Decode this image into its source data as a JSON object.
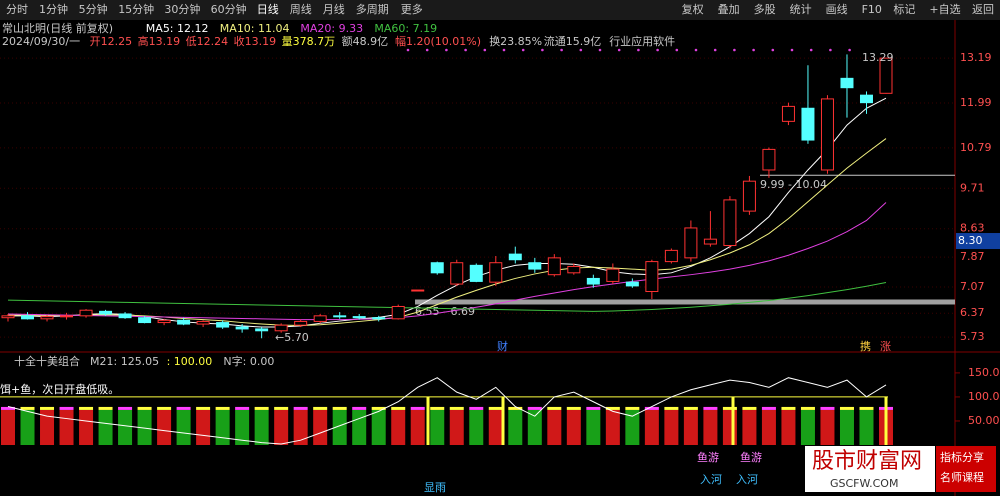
{
  "toolbar": {
    "left": [
      "分时",
      "1分钟",
      "5分钟",
      "15分钟",
      "30分钟",
      "60分钟",
      "日线",
      "周线",
      "月线",
      "多周期",
      "更多"
    ],
    "right": [
      "复权",
      "叠加",
      "多股",
      "统计",
      "画线",
      "F10",
      "标记",
      "+自选",
      "返回"
    ]
  },
  "chart_data": {
    "type": "candlestick",
    "title": "常山北明(日线 前复权)",
    "info": [
      "2024/09/30/一",
      "开12.25",
      "高13.19",
      "低12.24",
      "收13.19",
      "量378.7万",
      "额48.9亿",
      "幅1.20(10.01%)",
      "换23.85%",
      "流通15.9亿",
      "行业应用软件"
    ],
    "candles": [
      [
        6.25,
        6.35,
        6.15,
        6.3
      ],
      [
        6.3,
        6.4,
        6.2,
        6.22
      ],
      [
        6.22,
        6.32,
        6.15,
        6.28
      ],
      [
        6.28,
        6.38,
        6.2,
        6.3
      ],
      [
        6.3,
        6.48,
        6.25,
        6.45
      ],
      [
        6.42,
        6.46,
        6.3,
        6.35
      ],
      [
        6.35,
        6.4,
        6.22,
        6.25
      ],
      [
        6.25,
        6.3,
        6.1,
        6.12
      ],
      [
        6.12,
        6.22,
        6.05,
        6.18
      ],
      [
        6.18,
        6.25,
        6.05,
        6.08
      ],
      [
        6.08,
        6.18,
        6,
        6.15
      ],
      [
        6.12,
        6.18,
        5.95,
        6
      ],
      [
        6,
        6.08,
        5.85,
        5.95
      ],
      [
        5.95,
        6,
        5.7,
        5.9
      ],
      [
        5.9,
        6.1,
        5.85,
        6.05
      ],
      [
        6.05,
        6.2,
        6,
        6.15
      ],
      [
        6.15,
        6.35,
        6.1,
        6.3
      ],
      [
        6.3,
        6.4,
        6.22,
        6.28
      ],
      [
        6.28,
        6.35,
        6.2,
        6.25
      ],
      [
        6.25,
        6.3,
        6.15,
        6.22
      ],
      [
        6.22,
        6.6,
        6.2,
        6.55
      ],
      [
        6.99,
        6.99,
        6.99,
        6.99
      ],
      [
        7.72,
        7.75,
        7.4,
        7.45
      ],
      [
        7.15,
        7.8,
        7.1,
        7.72
      ],
      [
        7.65,
        7.7,
        7.2,
        7.22
      ],
      [
        7.2,
        7.9,
        7.1,
        7.72
      ],
      [
        7.95,
        8.15,
        7.7,
        7.8
      ],
      [
        7.72,
        7.85,
        7.45,
        7.55
      ],
      [
        7.4,
        7.95,
        7.35,
        7.85
      ],
      [
        7.45,
        7.7,
        7.4,
        7.62
      ],
      [
        7.3,
        7.4,
        7.05,
        7.15
      ],
      [
        7.22,
        7.7,
        7.15,
        7.55
      ],
      [
        7.2,
        7.3,
        7.05,
        7.1
      ],
      [
        6.95,
        7.8,
        6.75,
        7.75
      ],
      [
        7.75,
        8.1,
        7.7,
        8.05
      ],
      [
        7.85,
        8.85,
        7.75,
        8.65
      ],
      [
        8.22,
        9.1,
        8.15,
        8.35
      ],
      [
        8.18,
        9.5,
        8.1,
        9.4
      ],
      [
        9.1,
        10.04,
        9,
        9.9
      ],
      [
        10.2,
        10.8,
        9.99,
        10.75
      ],
      [
        11.5,
        12,
        11.4,
        11.9
      ],
      [
        11.85,
        13,
        10.9,
        11
      ],
      [
        10.2,
        12.2,
        10.1,
        12.1
      ],
      [
        12.65,
        13.29,
        11.6,
        12.4
      ],
      [
        12.2,
        12.3,
        11.7,
        12
      ],
      [
        12.25,
        13.19,
        12.24,
        13.19
      ]
    ],
    "up_color": "#ff3232",
    "down_color": "#54ffff",
    "series": [
      {
        "label": "MA5: 12.12",
        "color": "#ffffff",
        "values": [
          6.3,
          6.3,
          6.28,
          6.3,
          6.34,
          6.36,
          6.34,
          6.28,
          6.2,
          6.14,
          6.1,
          6.08,
          6.03,
          6,
          6,
          6.03,
          6.1,
          6.16,
          6.22,
          6.26,
          6.34,
          6.55,
          6.85,
          7.12,
          7.35,
          7.52,
          7.65,
          7.7,
          7.7,
          7.68,
          7.6,
          7.48,
          7.42,
          7.4,
          7.45,
          7.62,
          7.85,
          8.15,
          8.5,
          8.95,
          9.6,
          10.2,
          10.75,
          11.4,
          11.85,
          12.12
        ]
      },
      {
        "label": "MA10: 11.04",
        "color": "#f0f080",
        "values": [
          6.32,
          6.32,
          6.31,
          6.31,
          6.32,
          6.33,
          6.32,
          6.3,
          6.27,
          6.23,
          6.2,
          6.17,
          6.12,
          6.08,
          6.05,
          6.04,
          6.06,
          6.1,
          6.15,
          6.2,
          6.26,
          6.4,
          6.6,
          6.8,
          6.98,
          7.15,
          7.3,
          7.42,
          7.52,
          7.58,
          7.6,
          7.58,
          7.55,
          7.52,
          7.55,
          7.65,
          7.8,
          7.98,
          8.2,
          8.5,
          8.9,
          9.35,
          9.8,
          10.25,
          10.65,
          11.04
        ]
      },
      {
        "label": "MA20: 9.33",
        "color": "#e040e0",
        "values": [
          6.35,
          6.34,
          6.33,
          6.32,
          6.31,
          6.3,
          6.29,
          6.28,
          6.27,
          6.26,
          6.25,
          6.24,
          6.23,
          6.22,
          6.21,
          6.2,
          6.2,
          6.2,
          6.21,
          6.22,
          6.25,
          6.3,
          6.37,
          6.45,
          6.53,
          6.62,
          6.72,
          6.82,
          6.91,
          7,
          7.08,
          7.15,
          7.22,
          7.28,
          7.34,
          7.4,
          7.47,
          7.55,
          7.65,
          7.77,
          7.92,
          8.1,
          8.3,
          8.55,
          8.85,
          9.33
        ]
      },
      {
        "label": "MA60: 7.19",
        "color": "#40c040",
        "values": [
          6.72,
          6.71,
          6.7,
          6.69,
          6.68,
          6.67,
          6.66,
          6.65,
          6.64,
          6.63,
          6.62,
          6.61,
          6.6,
          6.59,
          6.58,
          6.57,
          6.56,
          6.55,
          6.54,
          6.53,
          6.52,
          6.51,
          6.5,
          6.49,
          6.48,
          6.47,
          6.46,
          6.45,
          6.44,
          6.43,
          6.42,
          6.43,
          6.45,
          6.47,
          6.5,
          6.53,
          6.57,
          6.61,
          6.66,
          6.71,
          6.77,
          6.84,
          6.92,
          7,
          7.09,
          7.19
        ]
      }
    ],
    "ylim": [
      5.52,
      14.21
    ],
    "yticks": [
      13.19,
      11.99,
      10.79,
      9.71,
      8.63,
      7.87,
      7.07,
      6.37,
      5.73
    ],
    "current_price": {
      "value": 8.3,
      "label": "8.30"
    },
    "levels": [
      {
        "value": 6.67,
        "label": "6.55 - 6.69"
      },
      {
        "value": 10.06,
        "label": "9.99 - 10.04"
      }
    ],
    "annotations": [
      "13.29",
      "←5.70",
      "财",
      "携",
      "涨"
    ],
    "indicator": {
      "title": "十全十美组合",
      "m21": "M21: 125.05",
      "n100": ": 100.00",
      "nz": "N字: 0.00",
      "note": "饵+鱼，次日开盘低吸。",
      "values": [
        80,
        70,
        60,
        55,
        50,
        45,
        40,
        35,
        30,
        25,
        20,
        15,
        10,
        5,
        2,
        10,
        25,
        40,
        55,
        70,
        90,
        120,
        140,
        110,
        95,
        120,
        80,
        60,
        100,
        110,
        90,
        70,
        60,
        80,
        100,
        115,
        125,
        135,
        130,
        120,
        140,
        130,
        120,
        135,
        100,
        125.05
      ],
      "ylim": [
        0,
        181
      ],
      "yticks": [
        {
          "value": 150,
          "label": "150.00"
        },
        {
          "value": 100,
          "label": "100.00"
        },
        {
          "value": 50,
          "label": "50.00"
        }
      ],
      "signals": [
        "鱼游",
        "入河",
        "鱼游",
        "入河",
        "显雨"
      ]
    }
  },
  "watermark": {
    "site": "股市财富网",
    "url": "GSCFW.COM",
    "tag1": "指标分享",
    "tag2": "名师课程"
  }
}
